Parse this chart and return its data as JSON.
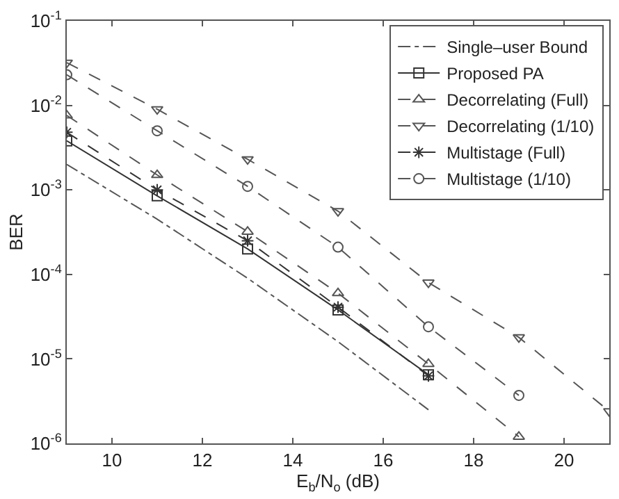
{
  "chart_data": {
    "type": "line",
    "xlabel": "E$_{b}$/N$_{o}$ (dB)",
    "ylabel": "BER",
    "x": [
      9,
      11,
      13,
      15,
      17,
      19,
      21
    ],
    "series": [
      {
        "name": "Single–user Bound",
        "color": "#555555",
        "line_style": "dashdot",
        "marker": "none",
        "x": [
          9,
          11,
          13,
          15,
          17
        ],
        "values": [
          0.002,
          0.00045,
          9e-05,
          1.6e-05,
          2.5e-06
        ]
      },
      {
        "name": "Proposed PA",
        "color": "#333333",
        "line_style": "solid",
        "marker": "square",
        "x": [
          9,
          11,
          13,
          15,
          17
        ],
        "values": [
          0.0038,
          0.00085,
          0.0002,
          3.8e-05,
          6.5e-06
        ]
      },
      {
        "name": "Decorrelating (Full)",
        "color": "#555555",
        "line_style": "dashed",
        "marker": "triangle",
        "x": [
          9,
          11,
          13,
          15,
          17,
          19
        ],
        "values": [
          0.0076,
          0.0015,
          0.00032,
          6e-05,
          8.7e-06,
          1.2e-06
        ]
      },
      {
        "name": "Decorrelating (1/10)",
        "color": "#555555",
        "line_style": "dashed",
        "marker": "triangle-down",
        "values": [
          0.032,
          0.009,
          0.0023,
          0.00056,
          8e-05,
          1.8e-05,
          2.4e-06
        ]
      },
      {
        "name": "Multistage (Full)",
        "color": "#333333",
        "line_style": "dashed",
        "marker": "cross",
        "x": [
          9,
          11,
          13,
          15,
          17
        ],
        "values": [
          0.0048,
          0.001,
          0.00025,
          4.1e-05,
          6.3e-06
        ]
      },
      {
        "name": "Multistage (1/10)",
        "color": "#555555",
        "line_style": "dashed",
        "marker": "circle",
        "x": [
          9,
          11,
          13,
          15,
          17,
          19
        ],
        "values": [
          0.023,
          0.005,
          0.0011,
          0.00021,
          2.4e-05,
          3.7e-06
        ]
      }
    ],
    "log": "y",
    "legend": "top right",
    "xlim": [
      9,
      21
    ],
    "xticks": [
      10,
      12,
      14,
      16,
      18,
      20
    ],
    "ylim": [
      1e-06,
      0.1
    ],
    "yticks": [
      {
        "value": 1e-06,
        "label": "10$^{-6}$"
      },
      {
        "value": 1e-05,
        "label": "10$^{-5}$"
      },
      {
        "value": 0.0001,
        "label": "10$^{-4}$"
      },
      {
        "value": 0.001,
        "label": "10$^{-3}$"
      },
      {
        "value": 0.01,
        "label": "10$^{-2}$"
      },
      {
        "value": 0.1,
        "label": "10$^{-1}$"
      }
    ]
  }
}
